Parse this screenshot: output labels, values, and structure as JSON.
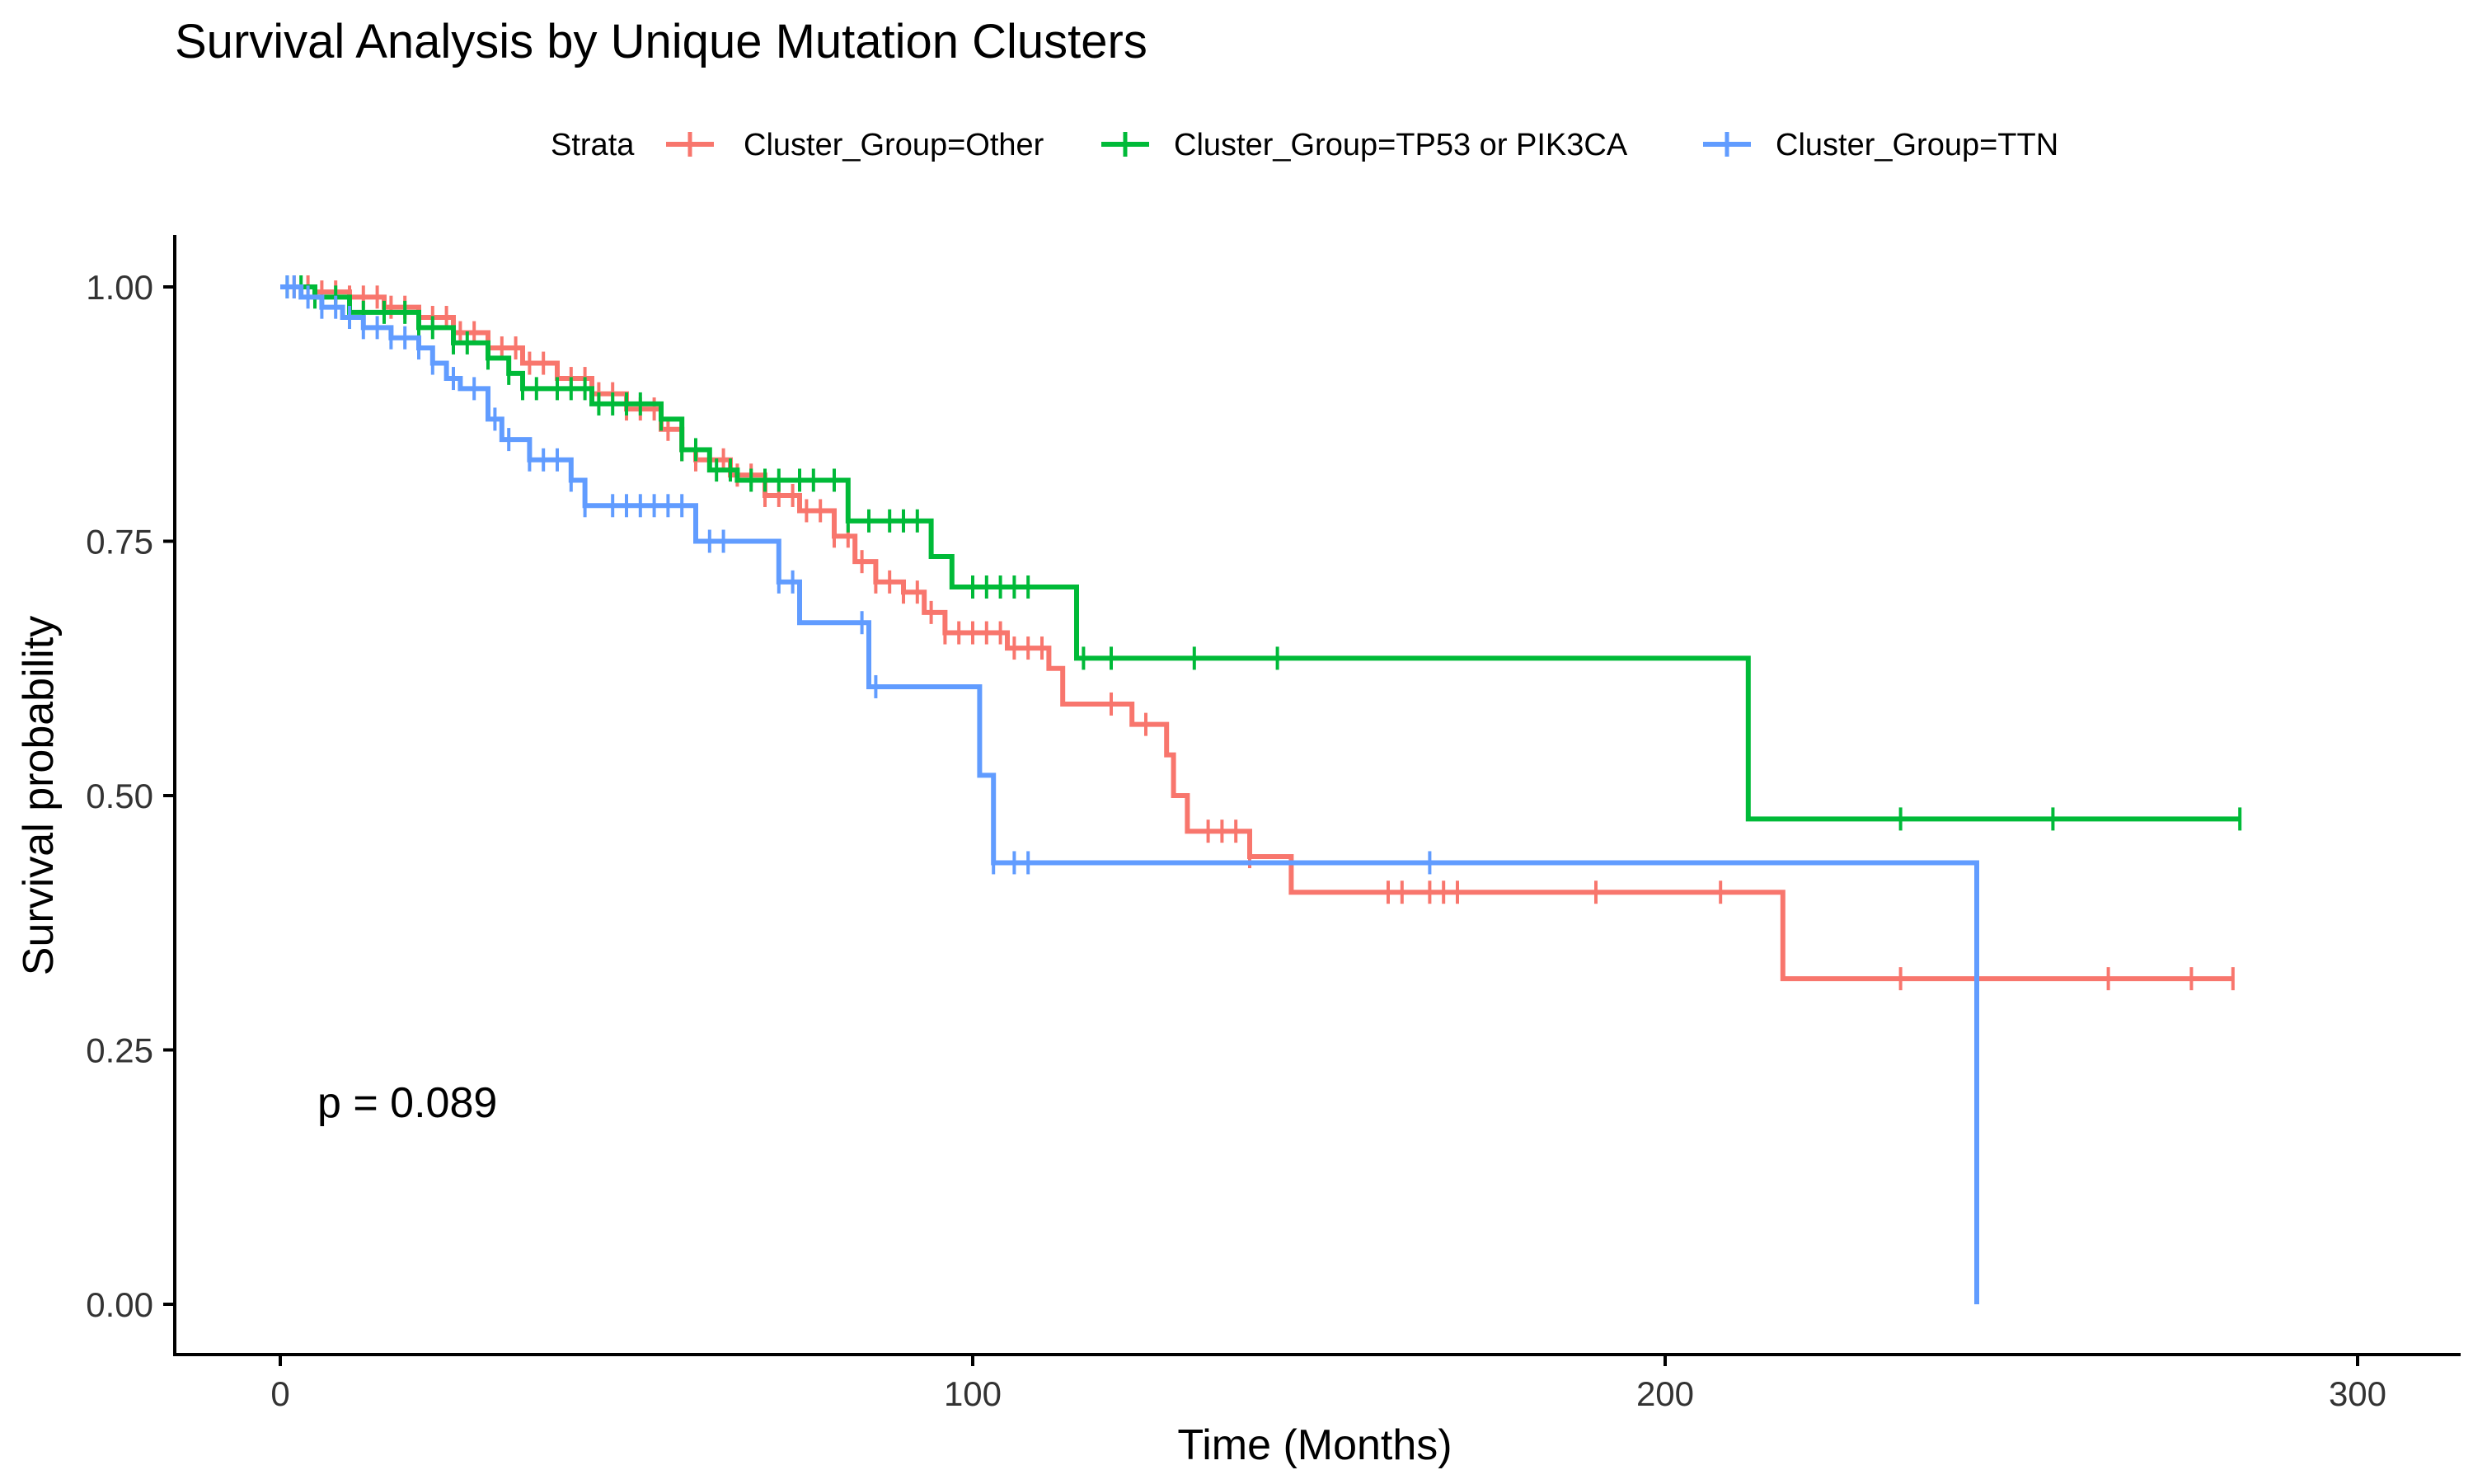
{
  "chart_data": {
    "type": "line",
    "title": "Survival Analysis by Unique Mutation Clusters",
    "xlabel": "Time (Months)",
    "ylabel": "Survival probability",
    "xlim": [
      -15,
      315
    ],
    "ylim": [
      -0.05,
      1.05
    ],
    "x_ticks": [
      0,
      100,
      200,
      300
    ],
    "x_tick_labels": [
      "0",
      "100",
      "200",
      "300"
    ],
    "y_ticks": [
      0,
      0.25,
      0.5,
      0.75,
      1.0
    ],
    "y_tick_labels": [
      "0.00",
      "0.25",
      "0.50",
      "0.75",
      "1.00"
    ],
    "grid": false,
    "legend": {
      "title": "Strata",
      "position": "top"
    },
    "annotation": "p = 0.089",
    "series": [
      {
        "name": "Cluster_Group=Other",
        "color": "#F8766D",
        "steps": [
          [
            0,
            1.0
          ],
          [
            5,
            0.995
          ],
          [
            10,
            0.99
          ],
          [
            15,
            0.98
          ],
          [
            20,
            0.97
          ],
          [
            25,
            0.955
          ],
          [
            30,
            0.94
          ],
          [
            35,
            0.925
          ],
          [
            40,
            0.91
          ],
          [
            45,
            0.895
          ],
          [
            50,
            0.88
          ],
          [
            55,
            0.86
          ],
          [
            58,
            0.84
          ],
          [
            60,
            0.83
          ],
          [
            65,
            0.815
          ],
          [
            70,
            0.795
          ],
          [
            75,
            0.78
          ],
          [
            80,
            0.755
          ],
          [
            83,
            0.73
          ],
          [
            86,
            0.71
          ],
          [
            90,
            0.7
          ],
          [
            93,
            0.68
          ],
          [
            96,
            0.66
          ],
          [
            105,
            0.645
          ],
          [
            111,
            0.625
          ],
          [
            113,
            0.59
          ],
          [
            123,
            0.57
          ],
          [
            128,
            0.54
          ],
          [
            129,
            0.5
          ],
          [
            131,
            0.465
          ],
          [
            140,
            0.44
          ],
          [
            146,
            0.405
          ],
          [
            217,
            0.32
          ],
          [
            282,
            0.32
          ]
        ],
        "censor_x": [
          2,
          4,
          6,
          8,
          10,
          12,
          14,
          16,
          18,
          20,
          22,
          24,
          26,
          28,
          30,
          32,
          34,
          36,
          38,
          40,
          42,
          44,
          46,
          48,
          50,
          52,
          54,
          56,
          58,
          60,
          62,
          64,
          66,
          68,
          70,
          72,
          74,
          76,
          78,
          80,
          82,
          84,
          86,
          88,
          90,
          92,
          94,
          96,
          98,
          100,
          102,
          104,
          106,
          108,
          110,
          120,
          125,
          134,
          136,
          138,
          140,
          160,
          162,
          166,
          168,
          170,
          190,
          208,
          234,
          264,
          276,
          282
        ]
      },
      {
        "name": "Cluster_Group=TP53 or PIK3CA",
        "color": "#00BA38",
        "steps": [
          [
            0,
            1.0
          ],
          [
            5,
            0.99
          ],
          [
            10,
            0.975
          ],
          [
            20,
            0.96
          ],
          [
            25,
            0.945
          ],
          [
            30,
            0.93
          ],
          [
            33,
            0.915
          ],
          [
            35,
            0.9
          ],
          [
            45,
            0.885
          ],
          [
            55,
            0.87
          ],
          [
            58,
            0.84
          ],
          [
            62,
            0.82
          ],
          [
            66,
            0.81
          ],
          [
            82,
            0.77
          ],
          [
            94,
            0.735
          ],
          [
            97,
            0.705
          ],
          [
            115,
            0.635
          ],
          [
            212,
            0.635
          ],
          [
            212,
            0.477
          ],
          [
            283,
            0.477
          ]
        ],
        "censor_x": [
          1,
          3,
          5,
          8,
          12,
          15,
          18,
          20,
          22,
          25,
          27,
          30,
          33,
          35,
          37,
          40,
          42,
          44,
          46,
          48,
          50,
          52,
          55,
          58,
          60,
          63,
          65,
          68,
          70,
          72,
          75,
          77,
          80,
          82,
          85,
          88,
          90,
          92,
          100,
          102,
          104,
          106,
          108,
          116,
          120,
          132,
          144,
          234,
          256,
          283
        ]
      },
      {
        "name": "Cluster_Group=TTN",
        "color": "#619CFF",
        "steps": [
          [
            0,
            1.0
          ],
          [
            3,
            0.99
          ],
          [
            6,
            0.98
          ],
          [
            9,
            0.97
          ],
          [
            12,
            0.96
          ],
          [
            16,
            0.95
          ],
          [
            20,
            0.94
          ],
          [
            22,
            0.925
          ],
          [
            24,
            0.91
          ],
          [
            26,
            0.9
          ],
          [
            30,
            0.87
          ],
          [
            32,
            0.85
          ],
          [
            36,
            0.83
          ],
          [
            42,
            0.81
          ],
          [
            44,
            0.785
          ],
          [
            60,
            0.75
          ],
          [
            72,
            0.71
          ],
          [
            75,
            0.67
          ],
          [
            85,
            0.607
          ],
          [
            101,
            0.52
          ],
          [
            103,
            0.434
          ],
          [
            245,
            0.434
          ],
          [
            245,
            0.0
          ]
        ],
        "censor_x": [
          1,
          2,
          4,
          6,
          8,
          10,
          12,
          14,
          16,
          18,
          20,
          22,
          25,
          28,
          31,
          33,
          36,
          38,
          40,
          42,
          44,
          48,
          50,
          52,
          54,
          56,
          58,
          62,
          64,
          72,
          74,
          84,
          86,
          103,
          106,
          108,
          166
        ]
      }
    ]
  }
}
